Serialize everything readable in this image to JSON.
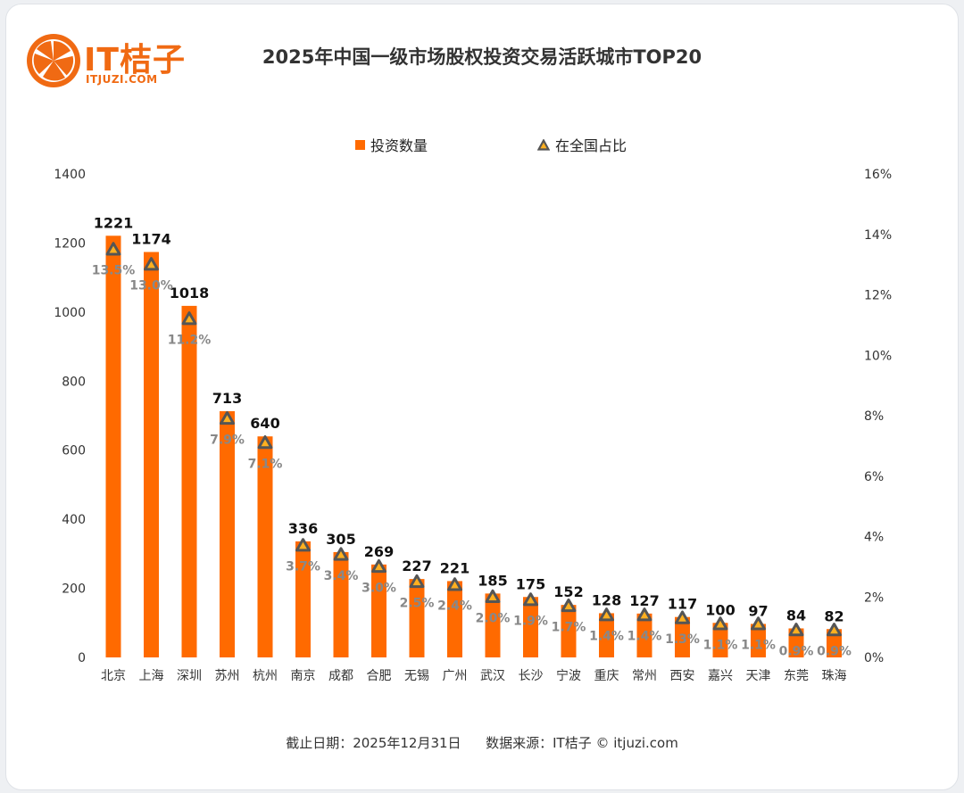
{
  "header": {
    "brand_name": "IT桔子",
    "brand_url": "ITJUZI.COM",
    "title": "2025年中国一级市场股权投资交易活跃城市TOP20"
  },
  "legend": {
    "bar_label": "投资数量",
    "marker_label": "在全国占比"
  },
  "footer": {
    "date_text": "截止日期：2025年12月31日",
    "source_text": "数据来源：IT桔子 © itjuzi.com"
  },
  "colors": {
    "bar": "#ff6a00",
    "marker_fill": "#ffb020",
    "marker_stroke": "#555555",
    "axis_text": "#333333",
    "pct_text": "#888888"
  },
  "chart_data": {
    "type": "bar",
    "title": "2025年中国一级市场股权投资交易活跃城市TOP20",
    "categories": [
      "北京",
      "上海",
      "深圳",
      "苏州",
      "杭州",
      "南京",
      "成都",
      "合肥",
      "无锡",
      "广州",
      "武汉",
      "长沙",
      "宁波",
      "重庆",
      "常州",
      "西安",
      "嘉兴",
      "天津",
      "东莞",
      "珠海"
    ],
    "series": [
      {
        "name": "投资数量",
        "type": "bar",
        "axis": "left",
        "values": [
          1221,
          1174,
          1018,
          713,
          640,
          336,
          305,
          269,
          227,
          221,
          185,
          175,
          152,
          128,
          127,
          117,
          100,
          97,
          84,
          82
        ]
      },
      {
        "name": "在全国占比",
        "type": "marker",
        "axis": "right",
        "values": [
          13.5,
          13.0,
          11.2,
          7.9,
          7.1,
          3.7,
          3.4,
          3.0,
          2.5,
          2.4,
          2.0,
          1.9,
          1.7,
          1.4,
          1.4,
          1.3,
          1.1,
          1.1,
          0.9,
          0.9
        ],
        "labels": [
          "13.5%",
          "13.0%",
          "11.2%",
          "7.9%",
          "7.1%",
          "3.7%",
          "3.4%",
          "3.0%",
          "2.5%",
          "2.4%",
          "2.0%",
          "1.9%",
          "1.7%",
          "1.4%",
          "1.4%",
          "1.3%",
          "1.1%",
          "1.1%",
          "0.9%",
          "0.9%"
        ]
      }
    ],
    "left_axis": {
      "min": 0,
      "max": 1400,
      "ticks": [
        0,
        200,
        400,
        600,
        800,
        1000,
        1200,
        1400
      ]
    },
    "right_axis": {
      "min": 0,
      "max": 16,
      "ticks": [
        "0%",
        "2%",
        "4%",
        "6%",
        "8%",
        "10%",
        "12%",
        "14%",
        "16%"
      ]
    },
    "grid": false,
    "legend_position": "top-center"
  }
}
